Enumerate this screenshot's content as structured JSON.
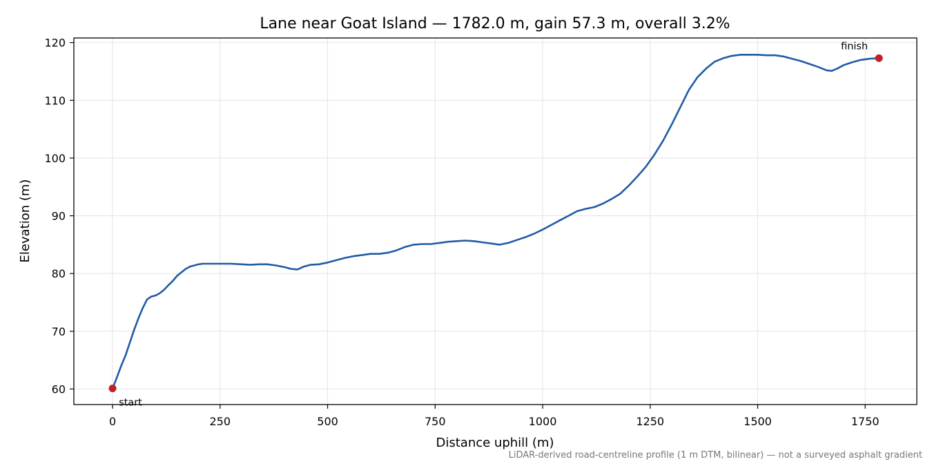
{
  "chart_data": {
    "type": "line",
    "title": "Lane near Goat Island — 1782.0 m, gain 57.3 m, overall 3.2%",
    "xlabel": "Distance uphill (m)",
    "ylabel": "Elevation (m)",
    "xlim": [
      -90,
      1870
    ],
    "ylim": [
      57.3,
      120.8
    ],
    "xticks": [
      0,
      250,
      500,
      750,
      1000,
      1250,
      1500,
      1750
    ],
    "yticks": [
      60,
      70,
      80,
      90,
      100,
      110,
      120
    ],
    "grid": true,
    "line_color": "#1f5aa6",
    "marker_color": "#c0202a",
    "series": [
      {
        "x": [
          0,
          10,
          20,
          30,
          40,
          50,
          60,
          70,
          80,
          90,
          100,
          110,
          120,
          130,
          140,
          150,
          160,
          170,
          180,
          190,
          200,
          210,
          225,
          250,
          275,
          300,
          320,
          340,
          360,
          380,
          400,
          415,
          430,
          445,
          460,
          480,
          500,
          520,
          540,
          560,
          580,
          600,
          620,
          640,
          660,
          680,
          700,
          720,
          740,
          760,
          780,
          800,
          820,
          840,
          860,
          880,
          900,
          920,
          940,
          960,
          980,
          1000,
          1020,
          1040,
          1060,
          1080,
          1100,
          1120,
          1140,
          1160,
          1180,
          1200,
          1220,
          1240,
          1260,
          1280,
          1300,
          1320,
          1340,
          1360,
          1380,
          1400,
          1420,
          1440,
          1460,
          1480,
          1500,
          1520,
          1540,
          1560,
          1580,
          1600,
          1620,
          1640,
          1660,
          1672,
          1685,
          1700,
          1720,
          1740,
          1760,
          1782
        ],
        "y": [
          60.1,
          62.0,
          64.0,
          65.8,
          68.0,
          70.2,
          72.2,
          74.0,
          75.5,
          76.0,
          76.2,
          76.6,
          77.2,
          78.0,
          78.7,
          79.6,
          80.2,
          80.8,
          81.2,
          81.4,
          81.6,
          81.7,
          81.7,
          81.7,
          81.7,
          81.6,
          81.5,
          81.6,
          81.6,
          81.4,
          81.1,
          80.8,
          80.7,
          81.2,
          81.5,
          81.6,
          81.9,
          82.3,
          82.7,
          83.0,
          83.2,
          83.4,
          83.4,
          83.6,
          84.0,
          84.6,
          85.0,
          85.1,
          85.1,
          85.3,
          85.5,
          85.6,
          85.7,
          85.6,
          85.4,
          85.2,
          85.0,
          85.3,
          85.8,
          86.3,
          86.9,
          87.6,
          88.4,
          89.2,
          90.0,
          90.8,
          91.2,
          91.5,
          92.1,
          92.9,
          93.8,
          95.2,
          96.8,
          98.5,
          100.6,
          103.0,
          105.8,
          108.8,
          111.8,
          114.0,
          115.5,
          116.7,
          117.3,
          117.7,
          117.9,
          117.9,
          117.9,
          117.8,
          117.8,
          117.6,
          117.2,
          116.8,
          116.3,
          115.8,
          115.2,
          115.1,
          115.5,
          116.1,
          116.6,
          117.0,
          117.2,
          117.3
        ]
      }
    ],
    "annotations": [
      {
        "text": "start",
        "x": 0,
        "y": 60.1
      },
      {
        "text": "finish",
        "x": 1782,
        "y": 117.3
      }
    ]
  },
  "footnote": "LiDAR-derived road-centreline profile (1 m DTM, bilinear) — not a surveyed asphalt gradient"
}
